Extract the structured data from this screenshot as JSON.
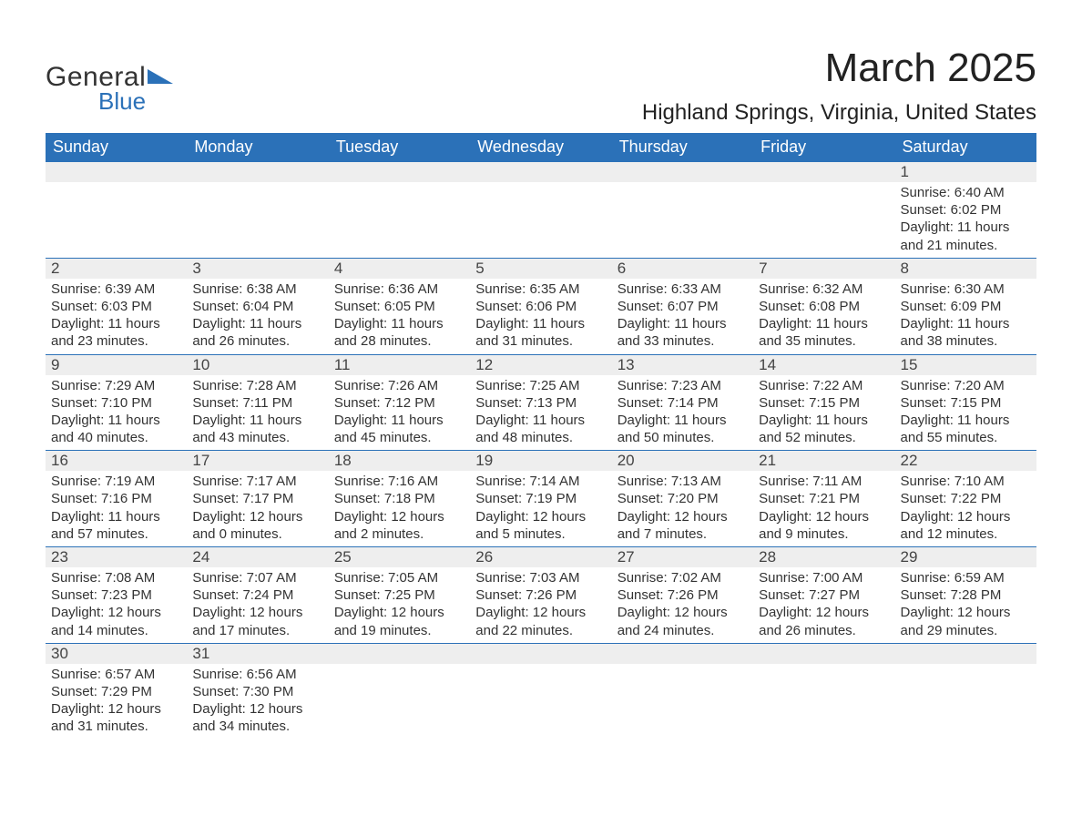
{
  "logo": {
    "text_general": "General",
    "text_blue": "Blue",
    "triangle_color": "#2b71b8"
  },
  "title": "March 2025",
  "location": "Highland Springs, Virginia, United States",
  "colors": {
    "header_bg": "#2b71b8",
    "header_text": "#ffffff",
    "daynum_bg": "#eeeeee",
    "border": "#2b71b8",
    "body_text": "#333333"
  },
  "weekdays": [
    "Sunday",
    "Monday",
    "Tuesday",
    "Wednesday",
    "Thursday",
    "Friday",
    "Saturday"
  ],
  "weeks": [
    [
      null,
      null,
      null,
      null,
      null,
      null,
      {
        "n": "1",
        "sunrise": "6:40 AM",
        "sunset": "6:02 PM",
        "dl": "11 hours and 21 minutes."
      }
    ],
    [
      {
        "n": "2",
        "sunrise": "6:39 AM",
        "sunset": "6:03 PM",
        "dl": "11 hours and 23 minutes."
      },
      {
        "n": "3",
        "sunrise": "6:38 AM",
        "sunset": "6:04 PM",
        "dl": "11 hours and 26 minutes."
      },
      {
        "n": "4",
        "sunrise": "6:36 AM",
        "sunset": "6:05 PM",
        "dl": "11 hours and 28 minutes."
      },
      {
        "n": "5",
        "sunrise": "6:35 AM",
        "sunset": "6:06 PM",
        "dl": "11 hours and 31 minutes."
      },
      {
        "n": "6",
        "sunrise": "6:33 AM",
        "sunset": "6:07 PM",
        "dl": "11 hours and 33 minutes."
      },
      {
        "n": "7",
        "sunrise": "6:32 AM",
        "sunset": "6:08 PM",
        "dl": "11 hours and 35 minutes."
      },
      {
        "n": "8",
        "sunrise": "6:30 AM",
        "sunset": "6:09 PM",
        "dl": "11 hours and 38 minutes."
      }
    ],
    [
      {
        "n": "9",
        "sunrise": "7:29 AM",
        "sunset": "7:10 PM",
        "dl": "11 hours and 40 minutes."
      },
      {
        "n": "10",
        "sunrise": "7:28 AM",
        "sunset": "7:11 PM",
        "dl": "11 hours and 43 minutes."
      },
      {
        "n": "11",
        "sunrise": "7:26 AM",
        "sunset": "7:12 PM",
        "dl": "11 hours and 45 minutes."
      },
      {
        "n": "12",
        "sunrise": "7:25 AM",
        "sunset": "7:13 PM",
        "dl": "11 hours and 48 minutes."
      },
      {
        "n": "13",
        "sunrise": "7:23 AM",
        "sunset": "7:14 PM",
        "dl": "11 hours and 50 minutes."
      },
      {
        "n": "14",
        "sunrise": "7:22 AM",
        "sunset": "7:15 PM",
        "dl": "11 hours and 52 minutes."
      },
      {
        "n": "15",
        "sunrise": "7:20 AM",
        "sunset": "7:15 PM",
        "dl": "11 hours and 55 minutes."
      }
    ],
    [
      {
        "n": "16",
        "sunrise": "7:19 AM",
        "sunset": "7:16 PM",
        "dl": "11 hours and 57 minutes."
      },
      {
        "n": "17",
        "sunrise": "7:17 AM",
        "sunset": "7:17 PM",
        "dl": "12 hours and 0 minutes."
      },
      {
        "n": "18",
        "sunrise": "7:16 AM",
        "sunset": "7:18 PM",
        "dl": "12 hours and 2 minutes."
      },
      {
        "n": "19",
        "sunrise": "7:14 AM",
        "sunset": "7:19 PM",
        "dl": "12 hours and 5 minutes."
      },
      {
        "n": "20",
        "sunrise": "7:13 AM",
        "sunset": "7:20 PM",
        "dl": "12 hours and 7 minutes."
      },
      {
        "n": "21",
        "sunrise": "7:11 AM",
        "sunset": "7:21 PM",
        "dl": "12 hours and 9 minutes."
      },
      {
        "n": "22",
        "sunrise": "7:10 AM",
        "sunset": "7:22 PM",
        "dl": "12 hours and 12 minutes."
      }
    ],
    [
      {
        "n": "23",
        "sunrise": "7:08 AM",
        "sunset": "7:23 PM",
        "dl": "12 hours and 14 minutes."
      },
      {
        "n": "24",
        "sunrise": "7:07 AM",
        "sunset": "7:24 PM",
        "dl": "12 hours and 17 minutes."
      },
      {
        "n": "25",
        "sunrise": "7:05 AM",
        "sunset": "7:25 PM",
        "dl": "12 hours and 19 minutes."
      },
      {
        "n": "26",
        "sunrise": "7:03 AM",
        "sunset": "7:26 PM",
        "dl": "12 hours and 22 minutes."
      },
      {
        "n": "27",
        "sunrise": "7:02 AM",
        "sunset": "7:26 PM",
        "dl": "12 hours and 24 minutes."
      },
      {
        "n": "28",
        "sunrise": "7:00 AM",
        "sunset": "7:27 PM",
        "dl": "12 hours and 26 minutes."
      },
      {
        "n": "29",
        "sunrise": "6:59 AM",
        "sunset": "7:28 PM",
        "dl": "12 hours and 29 minutes."
      }
    ],
    [
      {
        "n": "30",
        "sunrise": "6:57 AM",
        "sunset": "7:29 PM",
        "dl": "12 hours and 31 minutes."
      },
      {
        "n": "31",
        "sunrise": "6:56 AM",
        "sunset": "7:30 PM",
        "dl": "12 hours and 34 minutes."
      },
      null,
      null,
      null,
      null,
      null
    ]
  ],
  "labels": {
    "sunrise": "Sunrise: ",
    "sunset": "Sunset: ",
    "daylight": "Daylight: "
  }
}
